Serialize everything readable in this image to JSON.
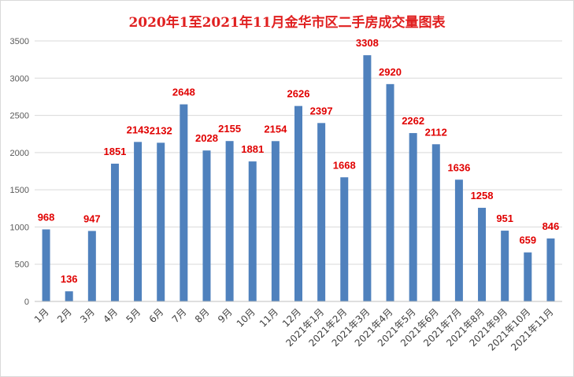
{
  "chart_data": {
    "type": "bar",
    "title": "2020年1至2021年11月金华市区二手房成交量图表",
    "xlabel": "",
    "ylabel": "",
    "ylim": [
      0,
      3500
    ],
    "yticks": [
      0,
      500,
      1000,
      1500,
      2000,
      2500,
      3000,
      3500
    ],
    "grid": true,
    "legend": "none",
    "bar_color": "#4f81bd",
    "label_color": "#e00000",
    "categories": [
      "1月",
      "2月",
      "3月",
      "4月",
      "5月",
      "6月",
      "7月",
      "8月",
      "9月",
      "10月",
      "11月",
      "12月",
      "2021年1月",
      "2021年2月",
      "2021年3月",
      "2021年4月",
      "2021年5月",
      "2021年6月",
      "2021年7月",
      "2021年8月",
      "2021年9月",
      "2021年10月",
      "2021年11月"
    ],
    "values": [
      968,
      136,
      947,
      1851,
      2143,
      2132,
      2648,
      2028,
      2155,
      1881,
      2154,
      2626,
      2397,
      1668,
      3308,
      2920,
      2262,
      2112,
      1636,
      1258,
      951,
      659,
      846
    ]
  }
}
